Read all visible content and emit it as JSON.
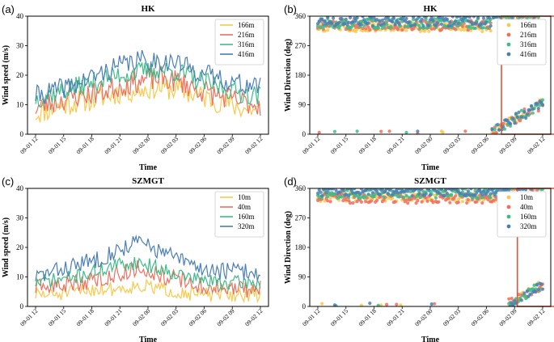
{
  "chart_data": [
    {
      "id": "a",
      "panel_label": "(a)",
      "type": "line",
      "title": "HK",
      "xlabel": "Time",
      "ylabel": "Wind speed (m/s)",
      "ylim": [
        0,
        40
      ],
      "yticks": [
        "0",
        "10",
        "20",
        "30",
        "40"
      ],
      "xticks": [
        "09-01 12",
        "09-01 15",
        "09-01 18",
        "09-01 21",
        "09-02 00",
        "09-02 03",
        "09-02 06",
        "09-02 09",
        "09-02 12"
      ],
      "legend_position": "top-right",
      "series": [
        {
          "name": "166m",
          "color": "#f7c94c",
          "base": [
            7,
            9,
            11,
            12,
            14,
            15,
            16,
            15,
            13,
            11,
            9,
            8
          ],
          "noise": 4,
          "seed": 11
        },
        {
          "name": "216m",
          "color": "#ee6f5f",
          "base": [
            9,
            11,
            13,
            14,
            16,
            18,
            19,
            18,
            15,
            13,
            11,
            10
          ],
          "noise": 4,
          "seed": 23
        },
        {
          "name": "316m",
          "color": "#3cbd87",
          "base": [
            12,
            14,
            16,
            18,
            20,
            21,
            22,
            21,
            18,
            16,
            14,
            13
          ],
          "noise": 3.5,
          "seed": 37
        },
        {
          "name": "416m",
          "color": "#4a7fb5",
          "base": [
            13,
            15,
            17,
            20,
            23,
            25,
            25,
            24,
            21,
            19,
            17,
            16
          ],
          "noise": 3.5,
          "seed": 41
        }
      ]
    },
    {
      "id": "b",
      "panel_label": "(b)",
      "type": "scatter",
      "title": "HK",
      "xlabel": "Time",
      "ylabel": "Wind Direction (deg)",
      "ylim": [
        0,
        360
      ],
      "yticks": [
        "0",
        "90",
        "180",
        "270",
        "360"
      ],
      "xticks": [
        "09-01 12",
        "09-01 15",
        "09-01 18",
        "09-01 21",
        "09-02 00",
        "09-02 03",
        "09-02 06",
        "09-02 09",
        "09-02 12"
      ],
      "legend_position": "top-right",
      "highlight_x_range": [
        19.6,
        33.6
      ],
      "series": [
        {
          "name": "166m",
          "color": "#f7c94c",
          "seed": 5,
          "early": 328
        },
        {
          "name": "216m",
          "color": "#ee6f5f",
          "seed": 9,
          "early": 332
        },
        {
          "name": "316m",
          "color": "#3cbd87",
          "seed": 13,
          "early": 338
        },
        {
          "name": "416m",
          "color": "#4a7fb5",
          "seed": 17,
          "early": 345
        }
      ]
    },
    {
      "id": "c",
      "panel_label": "(c)",
      "type": "line",
      "title": "SZMGT",
      "xlabel": "Time",
      "ylabel": "Wind speed (m/s)",
      "ylim": [
        0,
        40
      ],
      "yticks": [
        "0",
        "10",
        "20",
        "30",
        "40"
      ],
      "xticks": [
        "09-01 12",
        "09-01 15",
        "09-01 18",
        "09-01 21",
        "09-02 00",
        "09-02 03",
        "09-02 06",
        "09-02 09",
        "09-02 12"
      ],
      "legend_position": "top-right",
      "series": [
        {
          "name": "10m",
          "color": "#f7c94c",
          "base": [
            4,
            4,
            5,
            6,
            6,
            7,
            6,
            5,
            4,
            4,
            4,
            4
          ],
          "noise": 2.5,
          "seed": 51
        },
        {
          "name": "40m",
          "color": "#ee6f5f",
          "base": [
            6,
            7,
            8,
            9,
            11,
            13,
            11,
            9,
            7,
            6,
            6,
            6
          ],
          "noise": 3,
          "seed": 63
        },
        {
          "name": "160m",
          "color": "#3cbd87",
          "base": [
            8,
            9,
            10,
            12,
            14,
            15,
            13,
            11,
            9,
            8,
            8,
            8
          ],
          "noise": 2.5,
          "seed": 71
        },
        {
          "name": "320m",
          "color": "#4a7fb5",
          "base": [
            10,
            12,
            14,
            16,
            19,
            22,
            19,
            16,
            13,
            12,
            12,
            11
          ],
          "noise": 3,
          "seed": 83
        }
      ]
    },
    {
      "id": "d",
      "panel_label": "(d)",
      "type": "scatter",
      "title": "SZMGT",
      "xlabel": "Time",
      "ylabel": "Wind Direction (deg)",
      "ylim": [
        0,
        360
      ],
      "yticks": [
        "0",
        "90",
        "180",
        "270",
        "360"
      ],
      "xticks": [
        "09-01 12",
        "09-01 15",
        "09-01 18",
        "09-01 21",
        "09-02 00",
        "09-02 03",
        "09-02 06",
        "09-02 09",
        "09-02 12"
      ],
      "legend_position": "top-right",
      "highlight_x_range": [
        21.3,
        33.4
      ],
      "series": [
        {
          "name": "10m",
          "color": "#f7c94c",
          "seed": 91,
          "early": 335
        },
        {
          "name": "40m",
          "color": "#ee6f5f",
          "seed": 93,
          "early": 330
        },
        {
          "name": "160m",
          "color": "#3cbd87",
          "seed": 97,
          "early": 345
        },
        {
          "name": "320m",
          "color": "#4a7fb5",
          "seed": 99,
          "early": 352
        }
      ]
    }
  ]
}
